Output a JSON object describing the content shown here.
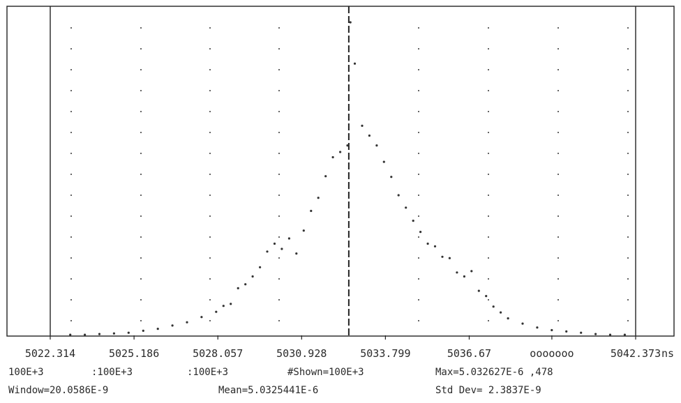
{
  "chart_data": {
    "type": "scatter",
    "x_unit": "ns",
    "xlim": [
      5022.314,
      5042.373
    ],
    "x_tick_labels": [
      "5022.314",
      "5025.186",
      "5028.057",
      "5030.928",
      "5033.799",
      "5036.67",
      "ooooooo",
      "5042.373"
    ],
    "x_tick_values": [
      5022.314,
      5025.186,
      5028.057,
      5030.928,
      5033.799,
      5036.67,
      5039.502,
      5042.373
    ],
    "ylim": [
      0,
      478
    ],
    "mean_marker_x": 5032.5441,
    "grid": "dotted",
    "series": [
      {
        "x": [
          5023.0,
          5023.5,
          5024.0,
          5024.5,
          5025.0,
          5025.5,
          5026.0,
          5026.5,
          5027.0,
          5027.5,
          5028.0,
          5028.25,
          5028.5,
          5028.75,
          5029.0,
          5029.25,
          5029.5,
          5029.75,
          5030.0,
          5030.25,
          5030.5,
          5030.75,
          5031.0,
          5031.25,
          5031.5,
          5031.75,
          5032.0,
          5032.25,
          5032.5,
          5032.6,
          5032.75,
          5033.0,
          5033.25,
          5033.5,
          5033.75,
          5034.0,
          5034.25,
          5034.5,
          5034.75,
          5035.0,
          5035.25,
          5035.5,
          5035.75,
          5036.0,
          5036.25,
          5036.5,
          5036.75,
          5037.0,
          5037.25,
          5037.5,
          5037.75,
          5038.0,
          5038.5,
          5039.0,
          5039.5,
          5040.0,
          5040.5,
          5041.0,
          5041.5,
          5042.0
        ],
        "y": [
          1,
          1,
          2,
          3,
          4,
          7,
          10,
          15,
          20,
          28,
          36,
          45,
          48,
          72,
          78,
          90,
          104,
          128,
          140,
          132,
          148,
          125,
          160,
          190,
          210,
          243,
          272,
          280,
          290,
          478,
          415,
          320,
          305,
          290,
          265,
          242,
          214,
          195,
          175,
          158,
          140,
          136,
          120,
          118,
          96,
          90,
          98,
          68,
          60,
          44,
          35,
          26,
          18,
          12,
          8,
          6,
          4,
          2,
          1,
          1
        ]
      }
    ]
  },
  "footer": {
    "row1": {
      "c1": "100E+3",
      "c2": ":100E+3",
      "c3": ":100E+3",
      "c4": "#Shown=100E+3",
      "c5": "Max=5.032627E-6 ,478"
    },
    "row2": {
      "c1": "Window=20.0586E-9",
      "c2": "Mean=5.0325441E-6",
      "c3": "Std Dev= 2.3837E-9"
    }
  }
}
